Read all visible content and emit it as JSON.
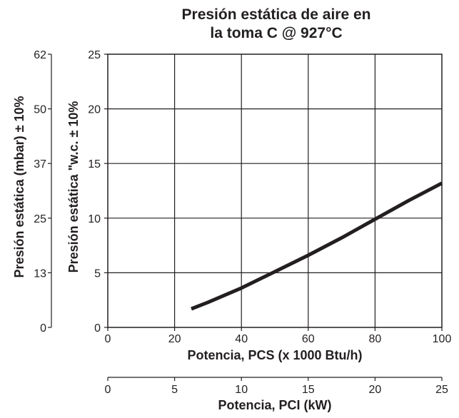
{
  "chart_data": {
    "type": "line",
    "title_lines": [
      "Presión estática de aire en",
      "la toma C @ 927°C"
    ],
    "x_axis_primary": {
      "label": "Potencia, PCS (x 1000 Btu/h)",
      "ticks": [
        "0",
        "20",
        "40",
        "60",
        "80",
        "100"
      ],
      "range": [
        0,
        100
      ]
    },
    "x_axis_secondary": {
      "label": "Potencia, PCI (kW)",
      "ticks": [
        "0",
        "5",
        "10",
        "15",
        "20",
        "25"
      ],
      "range": [
        0,
        25
      ]
    },
    "y_axis_primary": {
      "label": "Presión estática \"w.c. ± 10%",
      "ticks": [
        "0",
        "5",
        "10",
        "15",
        "20",
        "25"
      ],
      "range": [
        0,
        25
      ]
    },
    "y_axis_secondary": {
      "label": "Presión estática (mbar) ± 10%",
      "ticks": [
        "0",
        "13",
        "25",
        "37",
        "50",
        "62"
      ]
    },
    "grid": true,
    "series": [
      {
        "x": [
          25,
          30,
          40,
          50,
          60,
          70,
          80,
          90,
          100
        ],
        "y": [
          1.7,
          2.3,
          3.6,
          5.1,
          6.6,
          8.2,
          9.9,
          11.6,
          13.2
        ]
      }
    ]
  }
}
